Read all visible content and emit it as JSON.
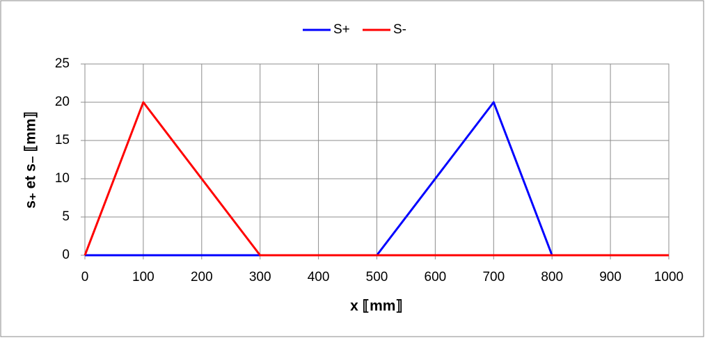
{
  "chart_data": {
    "type": "line",
    "xlabel": "x ⟦mm⟧",
    "ylabel": "s₊ et s₋ ⟦mm⟧",
    "series": [
      {
        "name": "S+",
        "color": "#0000ff",
        "x": [
          0,
          300,
          500,
          700,
          800,
          1000
        ],
        "values": [
          0,
          0,
          0,
          20,
          0,
          0
        ]
      },
      {
        "name": "S-",
        "color": "#ff0000",
        "x": [
          0,
          100,
          300,
          1000
        ],
        "values": [
          0,
          20,
          0,
          0
        ]
      }
    ],
    "xlim": [
      0,
      1000
    ],
    "xticks": [
      0,
      100,
      200,
      300,
      400,
      500,
      600,
      700,
      800,
      900,
      1000
    ],
    "ylim": [
      0,
      25
    ],
    "yticks": [
      0,
      5,
      10,
      15,
      20,
      25
    ],
    "grid": true,
    "legend": "top"
  }
}
